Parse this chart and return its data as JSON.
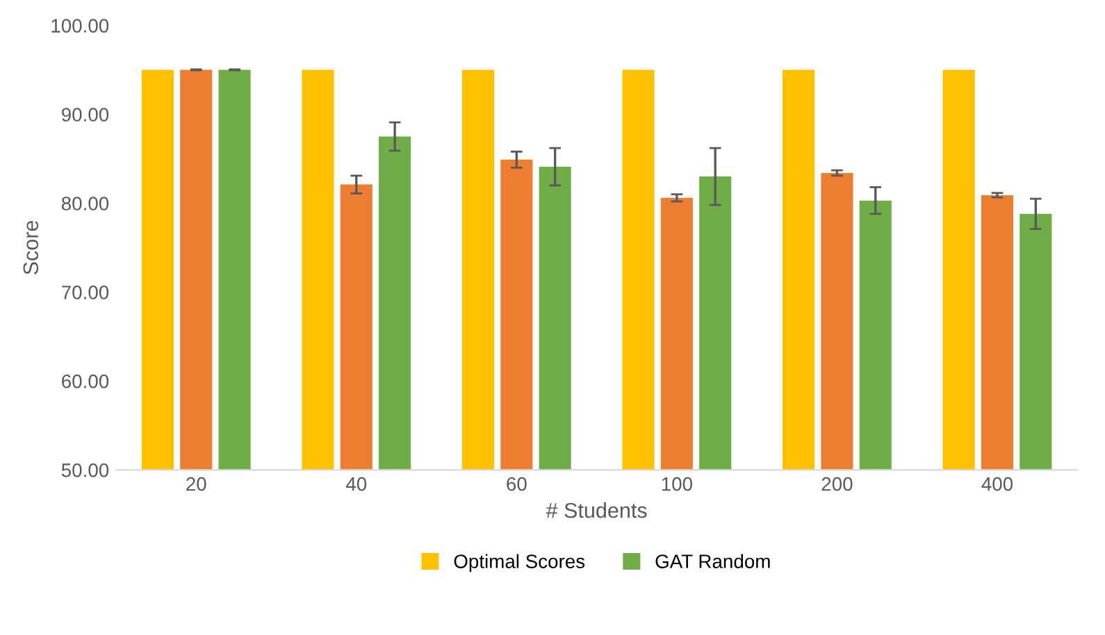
{
  "chart_data": {
    "type": "bar",
    "xlabel": "# Students",
    "ylabel": "Score",
    "categories": [
      "20",
      "40",
      "60",
      "100",
      "200",
      "400"
    ],
    "ylim": [
      50,
      100
    ],
    "yticks": [
      {
        "value": 50,
        "label": "50.00"
      },
      {
        "value": 60,
        "label": "60.00"
      },
      {
        "value": 70,
        "label": "70.00"
      },
      {
        "value": 80,
        "label": "80.00"
      },
      {
        "value": 90,
        "label": "90.00"
      },
      {
        "value": 100,
        "label": "100.00"
      }
    ],
    "grid": false,
    "legend": "bottom",
    "series": [
      {
        "name": "Optimal Scores",
        "color": "#ffc000",
        "values": [
          95,
          95,
          95,
          95,
          95,
          95
        ]
      },
      {
        "color": "#ed7d31",
        "values": [
          95,
          82.1,
          84.9,
          80.6,
          83.4,
          80.9
        ],
        "errors": [
          0.05,
          1.0,
          0.9,
          0.4,
          0.3,
          0.25
        ]
      },
      {
        "name": "GAT Random",
        "color": "#70ad47",
        "values": [
          95,
          87.5,
          84.1,
          83.0,
          80.3,
          78.8
        ],
        "errors": [
          0.05,
          1.6,
          2.1,
          3.2,
          1.5,
          1.7
        ]
      }
    ]
  }
}
